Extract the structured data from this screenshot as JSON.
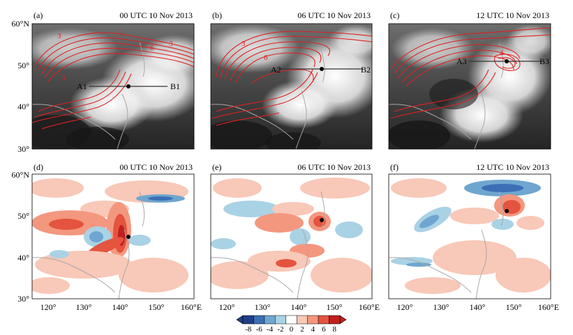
{
  "figure": {
    "panels": [
      {
        "id": "a",
        "label": "(a)",
        "time": "00 UTC 10 Nov 2013",
        "type": "satellite",
        "line_start": "A1",
        "line_end": "B1",
        "contour_labels": [
          "3",
          "3",
          "6",
          "3",
          "3"
        ]
      },
      {
        "id": "b",
        "label": "(b)",
        "time": "06 UTC 10 Nov 2013",
        "type": "satellite",
        "line_start": "A2",
        "line_end": "B2",
        "contour_labels": [
          "3",
          "6"
        ]
      },
      {
        "id": "c",
        "label": "(c)",
        "time": "12 UTC 10 Nov 2013",
        "type": "satellite",
        "line_start": "A3",
        "line_end": "B3",
        "contour_labels": [
          "4"
        ]
      },
      {
        "id": "d",
        "label": "(d)",
        "time": "00 UTC 10 Nov 2013",
        "type": "anomaly"
      },
      {
        "id": "e",
        "label": "(e)",
        "time": "06 UTC 10 Nov 2013",
        "type": "anomaly"
      },
      {
        "id": "f",
        "label": "(f)",
        "time": "12 UTC 10 Nov 2013",
        "type": "anomaly"
      }
    ],
    "y_ticks_top": [
      "60°N",
      "50°",
      "40°",
      "30°"
    ],
    "y_ticks_bottom": [
      "60°N",
      "50°",
      "40°",
      "30°"
    ],
    "x_ticks": [
      "120°",
      "130°",
      "140°",
      "150°",
      "160°E"
    ],
    "colorbar": {
      "labels": [
        "-8",
        "-6",
        "-4",
        "-2",
        "0",
        "2",
        "4",
        "6",
        "8"
      ],
      "colors": [
        "#1f3e88",
        "#3b6fb5",
        "#6fa6cf",
        "#a9d2e5",
        "#ffffff",
        "#f8c8b8",
        "#f4977f",
        "#e4543f",
        "#bf1f1f"
      ]
    },
    "colors": {
      "contour": "#e02020",
      "marker": "#000000",
      "coast": "#a8a8a8"
    }
  }
}
